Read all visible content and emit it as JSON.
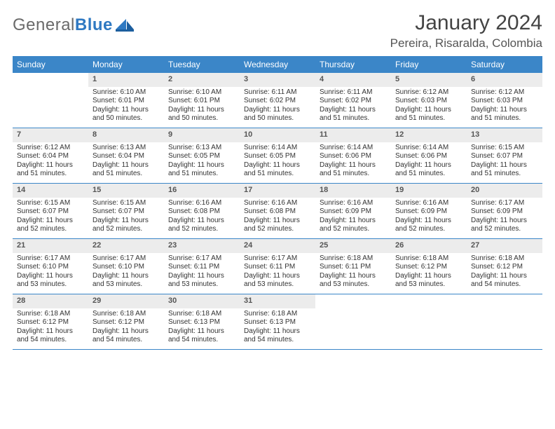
{
  "brand": {
    "word1": "General",
    "word2": "Blue"
  },
  "title": "January 2024",
  "location": "Pereira, Risaralda, Colombia",
  "colors": {
    "header_bg": "#3b86c8",
    "header_text": "#ffffff",
    "daynum_bg": "#ececec",
    "border": "#3b86c8",
    "logo_gray": "#6a6a6a",
    "logo_blue": "#2f79c2"
  },
  "weekdays": [
    "Sunday",
    "Monday",
    "Tuesday",
    "Wednesday",
    "Thursday",
    "Friday",
    "Saturday"
  ],
  "weeks": [
    [
      {
        "day": "",
        "sunrise": "",
        "sunset": "",
        "daylight_a": "",
        "daylight_b": ""
      },
      {
        "day": "1",
        "sunrise": "Sunrise: 6:10 AM",
        "sunset": "Sunset: 6:01 PM",
        "daylight_a": "Daylight: 11 hours",
        "daylight_b": "and 50 minutes."
      },
      {
        "day": "2",
        "sunrise": "Sunrise: 6:10 AM",
        "sunset": "Sunset: 6:01 PM",
        "daylight_a": "Daylight: 11 hours",
        "daylight_b": "and 50 minutes."
      },
      {
        "day": "3",
        "sunrise": "Sunrise: 6:11 AM",
        "sunset": "Sunset: 6:02 PM",
        "daylight_a": "Daylight: 11 hours",
        "daylight_b": "and 50 minutes."
      },
      {
        "day": "4",
        "sunrise": "Sunrise: 6:11 AM",
        "sunset": "Sunset: 6:02 PM",
        "daylight_a": "Daylight: 11 hours",
        "daylight_b": "and 51 minutes."
      },
      {
        "day": "5",
        "sunrise": "Sunrise: 6:12 AM",
        "sunset": "Sunset: 6:03 PM",
        "daylight_a": "Daylight: 11 hours",
        "daylight_b": "and 51 minutes."
      },
      {
        "day": "6",
        "sunrise": "Sunrise: 6:12 AM",
        "sunset": "Sunset: 6:03 PM",
        "daylight_a": "Daylight: 11 hours",
        "daylight_b": "and 51 minutes."
      }
    ],
    [
      {
        "day": "7",
        "sunrise": "Sunrise: 6:12 AM",
        "sunset": "Sunset: 6:04 PM",
        "daylight_a": "Daylight: 11 hours",
        "daylight_b": "and 51 minutes."
      },
      {
        "day": "8",
        "sunrise": "Sunrise: 6:13 AM",
        "sunset": "Sunset: 6:04 PM",
        "daylight_a": "Daylight: 11 hours",
        "daylight_b": "and 51 minutes."
      },
      {
        "day": "9",
        "sunrise": "Sunrise: 6:13 AM",
        "sunset": "Sunset: 6:05 PM",
        "daylight_a": "Daylight: 11 hours",
        "daylight_b": "and 51 minutes."
      },
      {
        "day": "10",
        "sunrise": "Sunrise: 6:14 AM",
        "sunset": "Sunset: 6:05 PM",
        "daylight_a": "Daylight: 11 hours",
        "daylight_b": "and 51 minutes."
      },
      {
        "day": "11",
        "sunrise": "Sunrise: 6:14 AM",
        "sunset": "Sunset: 6:06 PM",
        "daylight_a": "Daylight: 11 hours",
        "daylight_b": "and 51 minutes."
      },
      {
        "day": "12",
        "sunrise": "Sunrise: 6:14 AM",
        "sunset": "Sunset: 6:06 PM",
        "daylight_a": "Daylight: 11 hours",
        "daylight_b": "and 51 minutes."
      },
      {
        "day": "13",
        "sunrise": "Sunrise: 6:15 AM",
        "sunset": "Sunset: 6:07 PM",
        "daylight_a": "Daylight: 11 hours",
        "daylight_b": "and 51 minutes."
      }
    ],
    [
      {
        "day": "14",
        "sunrise": "Sunrise: 6:15 AM",
        "sunset": "Sunset: 6:07 PM",
        "daylight_a": "Daylight: 11 hours",
        "daylight_b": "and 52 minutes."
      },
      {
        "day": "15",
        "sunrise": "Sunrise: 6:15 AM",
        "sunset": "Sunset: 6:07 PM",
        "daylight_a": "Daylight: 11 hours",
        "daylight_b": "and 52 minutes."
      },
      {
        "day": "16",
        "sunrise": "Sunrise: 6:16 AM",
        "sunset": "Sunset: 6:08 PM",
        "daylight_a": "Daylight: 11 hours",
        "daylight_b": "and 52 minutes."
      },
      {
        "day": "17",
        "sunrise": "Sunrise: 6:16 AM",
        "sunset": "Sunset: 6:08 PM",
        "daylight_a": "Daylight: 11 hours",
        "daylight_b": "and 52 minutes."
      },
      {
        "day": "18",
        "sunrise": "Sunrise: 6:16 AM",
        "sunset": "Sunset: 6:09 PM",
        "daylight_a": "Daylight: 11 hours",
        "daylight_b": "and 52 minutes."
      },
      {
        "day": "19",
        "sunrise": "Sunrise: 6:16 AM",
        "sunset": "Sunset: 6:09 PM",
        "daylight_a": "Daylight: 11 hours",
        "daylight_b": "and 52 minutes."
      },
      {
        "day": "20",
        "sunrise": "Sunrise: 6:17 AM",
        "sunset": "Sunset: 6:09 PM",
        "daylight_a": "Daylight: 11 hours",
        "daylight_b": "and 52 minutes."
      }
    ],
    [
      {
        "day": "21",
        "sunrise": "Sunrise: 6:17 AM",
        "sunset": "Sunset: 6:10 PM",
        "daylight_a": "Daylight: 11 hours",
        "daylight_b": "and 53 minutes."
      },
      {
        "day": "22",
        "sunrise": "Sunrise: 6:17 AM",
        "sunset": "Sunset: 6:10 PM",
        "daylight_a": "Daylight: 11 hours",
        "daylight_b": "and 53 minutes."
      },
      {
        "day": "23",
        "sunrise": "Sunrise: 6:17 AM",
        "sunset": "Sunset: 6:11 PM",
        "daylight_a": "Daylight: 11 hours",
        "daylight_b": "and 53 minutes."
      },
      {
        "day": "24",
        "sunrise": "Sunrise: 6:17 AM",
        "sunset": "Sunset: 6:11 PM",
        "daylight_a": "Daylight: 11 hours",
        "daylight_b": "and 53 minutes."
      },
      {
        "day": "25",
        "sunrise": "Sunrise: 6:18 AM",
        "sunset": "Sunset: 6:11 PM",
        "daylight_a": "Daylight: 11 hours",
        "daylight_b": "and 53 minutes."
      },
      {
        "day": "26",
        "sunrise": "Sunrise: 6:18 AM",
        "sunset": "Sunset: 6:12 PM",
        "daylight_a": "Daylight: 11 hours",
        "daylight_b": "and 53 minutes."
      },
      {
        "day": "27",
        "sunrise": "Sunrise: 6:18 AM",
        "sunset": "Sunset: 6:12 PM",
        "daylight_a": "Daylight: 11 hours",
        "daylight_b": "and 54 minutes."
      }
    ],
    [
      {
        "day": "28",
        "sunrise": "Sunrise: 6:18 AM",
        "sunset": "Sunset: 6:12 PM",
        "daylight_a": "Daylight: 11 hours",
        "daylight_b": "and 54 minutes."
      },
      {
        "day": "29",
        "sunrise": "Sunrise: 6:18 AM",
        "sunset": "Sunset: 6:12 PM",
        "daylight_a": "Daylight: 11 hours",
        "daylight_b": "and 54 minutes."
      },
      {
        "day": "30",
        "sunrise": "Sunrise: 6:18 AM",
        "sunset": "Sunset: 6:13 PM",
        "daylight_a": "Daylight: 11 hours",
        "daylight_b": "and 54 minutes."
      },
      {
        "day": "31",
        "sunrise": "Sunrise: 6:18 AM",
        "sunset": "Sunset: 6:13 PM",
        "daylight_a": "Daylight: 11 hours",
        "daylight_b": "and 54 minutes."
      },
      {
        "day": "",
        "sunrise": "",
        "sunset": "",
        "daylight_a": "",
        "daylight_b": ""
      },
      {
        "day": "",
        "sunrise": "",
        "sunset": "",
        "daylight_a": "",
        "daylight_b": ""
      },
      {
        "day": "",
        "sunrise": "",
        "sunset": "",
        "daylight_a": "",
        "daylight_b": ""
      }
    ]
  ]
}
